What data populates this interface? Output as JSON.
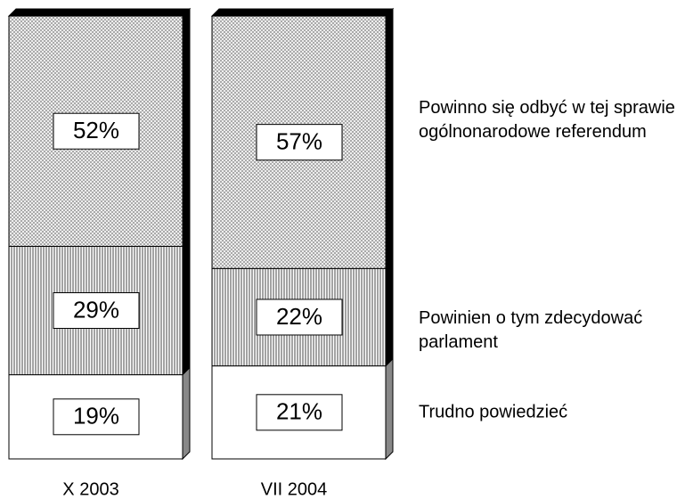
{
  "chart_data": {
    "type": "stacked_bar_3d",
    "categories": [
      "X 2003",
      "VII 2004"
    ],
    "series": [
      {
        "name": "Trudno powiedzieć",
        "values": [
          19,
          21
        ],
        "value_labels": [
          "19%",
          "21%"
        ]
      },
      {
        "name": "Powinien o tym zdecydować parlament",
        "values": [
          29,
          22
        ],
        "value_labels": [
          "29%",
          "22%"
        ]
      },
      {
        "name": "Powinno się odbyć w tej sprawie ogólnonarodowe referendum",
        "values": [
          52,
          57
        ],
        "value_labels": [
          "52%",
          "57%"
        ]
      }
    ],
    "ylim": [
      0,
      100
    ]
  }
}
